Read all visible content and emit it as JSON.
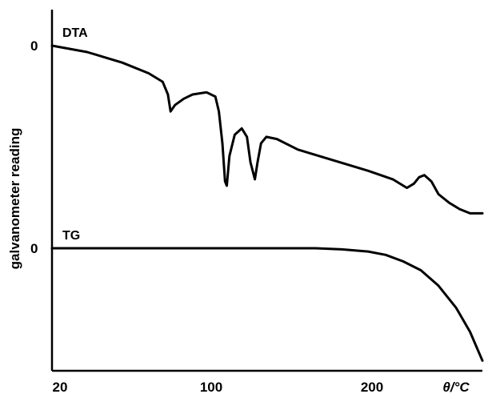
{
  "chart_data": {
    "type": "line",
    "title": "",
    "xlabel": "θ/°C",
    "ylabel": "galvanometer reading",
    "xlim": [
      20,
      265
    ],
    "x_ticks": [
      {
        "value": 20,
        "label": "20"
      },
      {
        "value": 100,
        "label": "100"
      },
      {
        "value": 200,
        "label": "200"
      }
    ],
    "grid": false,
    "series": [
      {
        "name": "DTA",
        "zero_label": "0",
        "x": [
          20,
          40,
          60,
          75,
          83,
          86,
          87.5,
          90,
          95,
          100,
          108,
          113,
          115,
          117,
          118.5,
          119.5,
          121,
          124,
          128,
          131,
          133,
          135.5,
          137,
          139,
          142,
          148,
          160,
          180,
          200,
          214,
          222,
          226,
          229,
          232,
          236,
          240,
          246,
          252,
          258,
          265
        ],
        "y": [
          0,
          -0.03,
          -0.08,
          -0.13,
          -0.17,
          -0.23,
          -0.31,
          -0.28,
          -0.25,
          -0.23,
          -0.22,
          -0.24,
          -0.31,
          -0.46,
          -0.64,
          -0.66,
          -0.52,
          -0.42,
          -0.39,
          -0.43,
          -0.55,
          -0.63,
          -0.55,
          -0.46,
          -0.43,
          -0.44,
          -0.49,
          -0.54,
          -0.59,
          -0.63,
          -0.67,
          -0.65,
          -0.62,
          -0.61,
          -0.64,
          -0.7,
          -0.74,
          -0.77,
          -0.79,
          -0.79
        ]
      },
      {
        "name": "TG",
        "zero_label": "0",
        "x": [
          20,
          60,
          100,
          140,
          170,
          185,
          200,
          210,
          220,
          230,
          240,
          250,
          258,
          265
        ],
        "y": [
          0,
          0,
          0,
          0,
          0,
          -0.005,
          -0.015,
          -0.03,
          -0.06,
          -0.1,
          -0.17,
          -0.27,
          -0.38,
          -0.51
        ]
      }
    ]
  }
}
